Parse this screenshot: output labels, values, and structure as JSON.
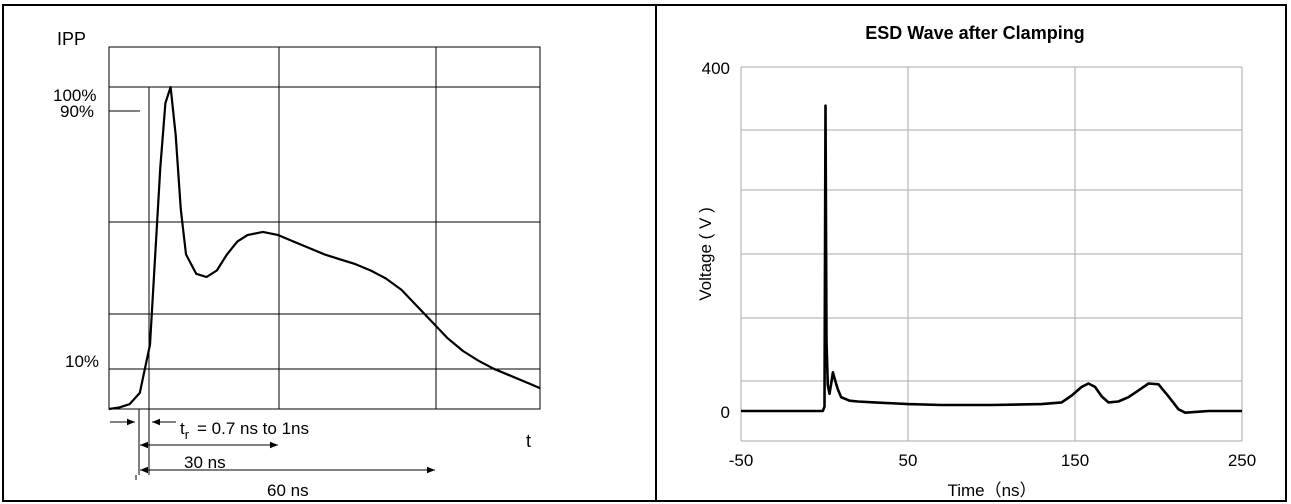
{
  "left_panel": {
    "ylabel": "IPP",
    "xlabel": "t",
    "level_labels": {
      "p100": "100%",
      "p90": "90%",
      "p10": "10%"
    },
    "rise_time_label": "= 0.7 ns to 1ns",
    "rise_time_symbol": "t",
    "rise_time_subscript": "r",
    "dim_30": "30 ns",
    "dim_60": "60 ns"
  },
  "right_panel": {
    "title": "ESD Wave after Clamping",
    "xlabel": "Time（ns）",
    "ylabel": "Voltage ( V )",
    "yticks": [
      "400",
      "0"
    ],
    "xticks": [
      "-50",
      "50",
      "150",
      "250"
    ]
  },
  "chart_data": [
    {
      "type": "line",
      "title": "",
      "xlabel": "t",
      "ylabel": "IPP",
      "ytick_labels": [
        "100%",
        "90%",
        "10%"
      ],
      "annotations": [
        "t_r = 0.7 ns to 1ns",
        "30 ns",
        "60 ns"
      ],
      "series": [
        {
          "x": [
            0,
            2,
            4,
            6,
            8,
            10,
            11,
            12,
            13,
            14,
            15,
            17,
            19,
            21,
            23,
            25,
            27,
            30,
            33,
            36,
            39,
            42,
            45,
            48,
            51,
            54,
            57,
            60,
            63,
            66,
            69,
            72,
            75,
            78,
            81,
            84
          ],
          "y": [
            0,
            0.5,
            1.5,
            5,
            20,
            75,
            95,
            100,
            85,
            62,
            48,
            42,
            41,
            43,
            48,
            52,
            54,
            55,
            54,
            52,
            50,
            48,
            46.5,
            45,
            43,
            40.5,
            37,
            32,
            27,
            22,
            18,
            15,
            12.5,
            10.5,
            8.5,
            6.5
          ]
        }
      ]
    },
    {
      "type": "line",
      "title": "ESD Wave after Clamping",
      "xlabel": "Time（ns）",
      "ylabel": "Voltage ( V )",
      "xlim": [
        -50,
        250
      ],
      "ylim": [
        0,
        400
      ],
      "xticks": [
        -50,
        50,
        150,
        250
      ],
      "yticks": [
        0,
        400
      ],
      "grid": true,
      "series": [
        {
          "x": [
            -50,
            -1,
            0,
            0.6,
            1.2,
            2,
            3,
            4,
            5,
            6,
            8,
            10,
            15,
            20,
            30,
            50,
            70,
            100,
            130,
            142,
            148,
            154,
            158,
            162,
            166,
            170,
            176,
            182,
            188,
            194,
            200,
            206,
            212,
            216,
            222,
            230,
            240,
            250
          ],
          "y": [
            0,
            0,
            5,
            355,
            80,
            30,
            20,
            32,
            45,
            38,
            25,
            16,
            12,
            11,
            10,
            8,
            7,
            7,
            8,
            10,
            18,
            28,
            32,
            28,
            17,
            10,
            11,
            16,
            24,
            32,
            31,
            17,
            2,
            -2,
            -1,
            0,
            0,
            0
          ]
        }
      ]
    }
  ]
}
